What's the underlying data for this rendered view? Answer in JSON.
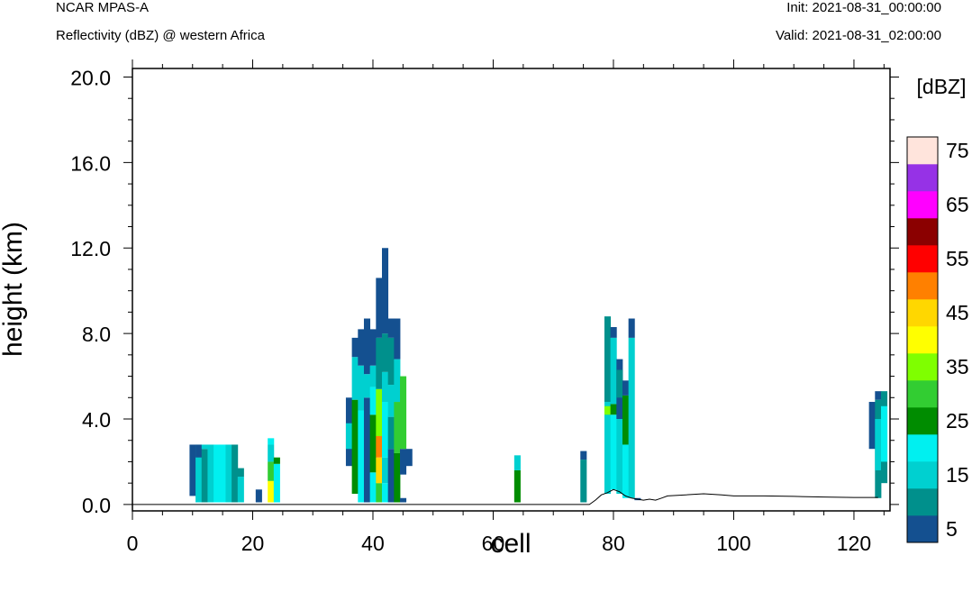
{
  "header": {
    "left_line1": "NCAR MPAS-A",
    "left_line2": "Reflectivity (dBZ) @ western Africa",
    "right_line1": "Init: 2021-08-31_00:00:00",
    "right_line2": "Valid: 2021-08-31_02:00:00"
  },
  "chart_data": {
    "type": "heatmap",
    "xlabel": "cell",
    "ylabel": "height (km)",
    "xlim": [
      0,
      126
    ],
    "ylim": [
      -0.3,
      20.4
    ],
    "x_ticks": [
      0,
      20,
      40,
      60,
      80,
      100,
      120
    ],
    "x_tick_labels": [
      "0",
      "20",
      "40",
      "60",
      "80",
      "100",
      "120"
    ],
    "y_ticks": [
      0,
      4,
      8,
      12,
      16,
      20
    ],
    "y_tick_labels": [
      "0.0",
      "4.0",
      "8.0",
      "12.0",
      "16.0",
      "20.0"
    ],
    "colorbar": {
      "unit_label": "[dBZ]",
      "placement": "right",
      "levels": [
        5,
        10,
        15,
        20,
        25,
        30,
        35,
        40,
        45,
        50,
        55,
        60,
        65,
        70,
        75
      ],
      "level_labels": [
        "5",
        "15",
        "25",
        "35",
        "45",
        "55",
        "65",
        "75"
      ],
      "colors": [
        "#145090",
        "#00908C",
        "#00D0D0",
        "#00F0F0",
        "#008C00",
        "#32CD32",
        "#7FFF00",
        "#FFFF00",
        "#FFD700",
        "#FF8000",
        "#FF0000",
        "#8B0000",
        "#FF00FF",
        "#9632E6",
        "#FFE4DC"
      ]
    },
    "terrain": [
      [
        0,
        0
      ],
      [
        76,
        0
      ],
      [
        77,
        0.2
      ],
      [
        78,
        0.45
      ],
      [
        79,
        0.55
      ],
      [
        80,
        0.7
      ],
      [
        81,
        0.6
      ],
      [
        82,
        0.4
      ],
      [
        83,
        0.3
      ],
      [
        84,
        0.25
      ],
      [
        85,
        0.2
      ],
      [
        86,
        0.25
      ],
      [
        87,
        0.2
      ],
      [
        88,
        0.3
      ],
      [
        89,
        0.4
      ],
      [
        92,
        0.45
      ],
      [
        95,
        0.5
      ],
      [
        98,
        0.45
      ],
      [
        100,
        0.4
      ],
      [
        105,
        0.4
      ],
      [
        110,
        0.38
      ],
      [
        115,
        0.35
      ],
      [
        120,
        0.33
      ],
      [
        124,
        0.33
      ]
    ],
    "cells": [
      {
        "x": 10,
        "cols": [
          [
            0.4,
            2.8,
            0
          ]
        ]
      },
      {
        "x": 11,
        "cols": [
          [
            0.1,
            2.8,
            2
          ],
          [
            2.2,
            2.8,
            0
          ]
        ]
      },
      {
        "x": 12,
        "cols": [
          [
            0.1,
            2.6,
            1
          ],
          [
            2.6,
            2.8,
            2
          ]
        ]
      },
      {
        "x": 13,
        "cols": [
          [
            0.1,
            2.8,
            2
          ]
        ]
      },
      {
        "x": 14,
        "cols": [
          [
            0.1,
            2.8,
            3
          ]
        ]
      },
      {
        "x": 15,
        "cols": [
          [
            0.1,
            2.8,
            3
          ]
        ]
      },
      {
        "x": 16,
        "cols": [
          [
            0.1,
            2.8,
            2
          ]
        ]
      },
      {
        "x": 17,
        "cols": [
          [
            0.1,
            2.8,
            1
          ]
        ]
      },
      {
        "x": 18,
        "cols": [
          [
            0.1,
            1.3,
            2
          ],
          [
            1.3,
            1.7,
            1
          ]
        ]
      },
      {
        "x": 21,
        "cols": [
          [
            0.1,
            0.7,
            0
          ]
        ]
      },
      {
        "x": 23,
        "cols": [
          [
            0.1,
            1.1,
            7
          ],
          [
            1.1,
            2.0,
            5
          ],
          [
            2.0,
            2.8,
            2
          ],
          [
            2.8,
            3.1,
            3
          ]
        ]
      },
      {
        "x": 24,
        "cols": [
          [
            0.1,
            1.9,
            3
          ],
          [
            1.9,
            2.2,
            4
          ]
        ]
      },
      {
        "x": 36,
        "cols": [
          [
            1.8,
            5.0,
            0
          ],
          [
            2.6,
            3.8,
            2
          ]
        ]
      },
      {
        "x": 37,
        "cols": [
          [
            0.5,
            4.9,
            4
          ],
          [
            4.9,
            6.9,
            2
          ],
          [
            6.9,
            7.8,
            0
          ]
        ]
      },
      {
        "x": 38,
        "cols": [
          [
            0.1,
            4.4,
            3
          ],
          [
            4.4,
            6.5,
            2
          ],
          [
            6.5,
            8.2,
            0
          ]
        ]
      },
      {
        "x": 39,
        "cols": [
          [
            0.1,
            5.0,
            0
          ],
          [
            5.0,
            6.1,
            2
          ],
          [
            6.1,
            8.7,
            0
          ]
        ]
      },
      {
        "x": 40,
        "cols": [
          [
            0.1,
            1.5,
            3
          ],
          [
            1.5,
            4.2,
            4
          ],
          [
            4.2,
            5.5,
            3
          ],
          [
            5.5,
            6.5,
            2
          ],
          [
            6.5,
            8.2,
            0
          ]
        ]
      },
      {
        "x": 41,
        "cols": [
          [
            0.1,
            1.0,
            5
          ],
          [
            1.0,
            2.2,
            8
          ],
          [
            2.2,
            3.2,
            9
          ],
          [
            3.2,
            5.4,
            6
          ],
          [
            5.4,
            7.8,
            1
          ],
          [
            7.8,
            10.6,
            0
          ]
        ]
      },
      {
        "x": 42,
        "cols": [
          [
            0.1,
            1.0,
            3
          ],
          [
            1.0,
            2.2,
            2
          ],
          [
            2.2,
            4.8,
            3
          ],
          [
            4.8,
            6.2,
            2
          ],
          [
            6.2,
            8.0,
            1
          ],
          [
            8.0,
            12.0,
            0
          ]
        ]
      },
      {
        "x": 43,
        "cols": [
          [
            0.1,
            2.6,
            0
          ],
          [
            2.6,
            4.1,
            1
          ],
          [
            4.1,
            5.6,
            2
          ],
          [
            5.6,
            7.8,
            1
          ],
          [
            7.8,
            8.7,
            0
          ]
        ]
      },
      {
        "x": 44,
        "cols": [
          [
            0.1,
            2.4,
            4
          ],
          [
            2.4,
            4.8,
            5
          ],
          [
            4.8,
            6.8,
            2
          ],
          [
            6.8,
            8.7,
            0
          ]
        ]
      },
      {
        "x": 45,
        "cols": [
          [
            0.1,
            0.3,
            0
          ],
          [
            1.4,
            2.6,
            0
          ],
          [
            2.6,
            6.0,
            5
          ]
        ]
      },
      {
        "x": 46,
        "cols": [
          [
            1.8,
            2.6,
            0
          ]
        ]
      },
      {
        "x": 64,
        "cols": [
          [
            0.1,
            1.6,
            4
          ],
          [
            1.6,
            2.3,
            2
          ]
        ]
      },
      {
        "x": 75,
        "cols": [
          [
            0.1,
            2.1,
            1
          ],
          [
            2.1,
            2.5,
            0
          ]
        ]
      },
      {
        "x": 79,
        "cols": [
          [
            0.5,
            4.8,
            2
          ],
          [
            4.8,
            8.8,
            1
          ],
          [
            4.2,
            4.6,
            6
          ]
        ]
      },
      {
        "x": 80,
        "cols": [
          [
            0.7,
            4.2,
            3
          ],
          [
            4.2,
            4.7,
            4
          ],
          [
            4.7,
            7.8,
            2
          ],
          [
            7.8,
            8.3,
            0
          ]
        ]
      },
      {
        "x": 81,
        "cols": [
          [
            0.5,
            4.0,
            2
          ],
          [
            4.0,
            6.8,
            0
          ],
          [
            5.0,
            6.3,
            1
          ]
        ]
      },
      {
        "x": 82,
        "cols": [
          [
            0.3,
            2.8,
            3
          ],
          [
            2.8,
            5.1,
            4
          ],
          [
            5.1,
            5.8,
            0
          ]
        ]
      },
      {
        "x": 83,
        "cols": [
          [
            0.3,
            7.8,
            2
          ],
          [
            7.8,
            8.7,
            0
          ]
        ]
      },
      {
        "x": 84,
        "cols": [
          [
            0.2,
            0.3,
            0
          ]
        ]
      },
      {
        "x": 123,
        "cols": [
          [
            2.6,
            4.8,
            0
          ]
        ]
      },
      {
        "x": 124,
        "cols": [
          [
            0.3,
            4.9,
            1
          ],
          [
            1.6,
            4.0,
            2
          ],
          [
            4.9,
            5.3,
            0
          ]
        ]
      },
      {
        "x": 125,
        "cols": [
          [
            1.0,
            5.3,
            1
          ],
          [
            2.0,
            4.6,
            3
          ]
        ]
      }
    ]
  }
}
